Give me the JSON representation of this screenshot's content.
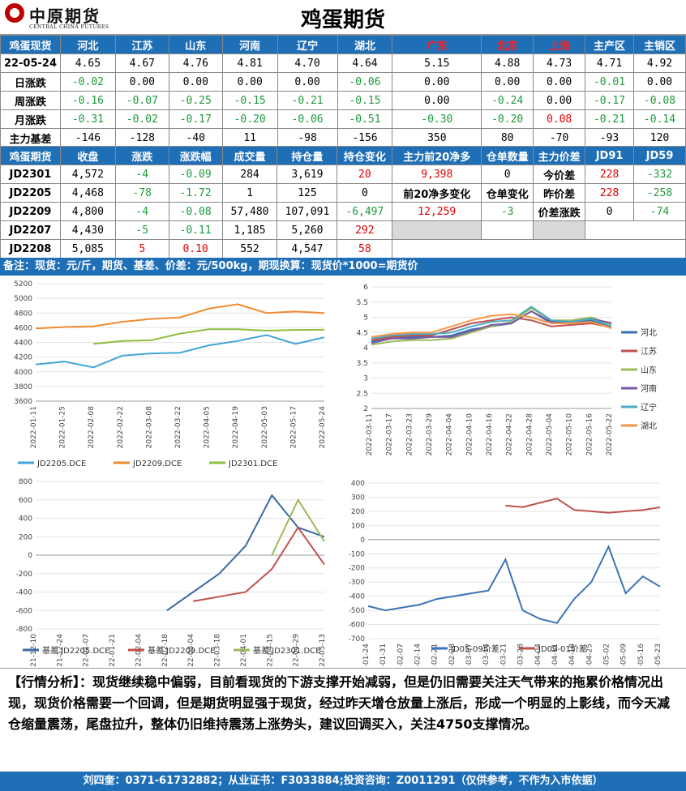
{
  "header": {
    "logo_cn": "中原期货",
    "logo_en": "CENTRAL CHINA FUTURES",
    "title": "鸡蛋期货"
  },
  "spot": {
    "columns": [
      "鸡蛋现货",
      "河北",
      "江苏",
      "山东",
      "河南",
      "辽宁",
      "湖北",
      "广东",
      "北京",
      "上海",
      "主产区",
      "主销区"
    ],
    "rows": [
      {
        "label": "22-05-24",
        "cells": [
          "4.65",
          "4.67",
          "4.76",
          "4.81",
          "4.70",
          "4.64",
          "5.15",
          "4.88",
          "4.73",
          "4.71",
          "4.92"
        ]
      },
      {
        "label": "日涨跌",
        "cells": [
          "-0.02",
          "0.00",
          "0.00",
          "0.00",
          "0.00",
          "-0.06",
          "0.00",
          "0.00",
          "0.00",
          "-0.01",
          "0.00"
        ]
      },
      {
        "label": "周涨跌",
        "cells": [
          "-0.16",
          "-0.07",
          "-0.25",
          "-0.15",
          "-0.21",
          "-0.15",
          "0.00",
          "-0.24",
          "0.00",
          "-0.17",
          "-0.08"
        ]
      },
      {
        "label": "月涨跌",
        "cells": [
          "-0.31",
          "-0.02",
          "-0.17",
          "-0.20",
          "-0.06",
          "-0.51",
          "-0.30",
          "-0.20",
          "0.08",
          "-0.21",
          "-0.14"
        ]
      },
      {
        "label": "主力基差",
        "cells": [
          "-146",
          "-128",
          "-40",
          "11",
          "-98",
          "-156",
          "350",
          "80",
          "-70",
          "-93",
          "120"
        ]
      }
    ]
  },
  "futures": {
    "columns": [
      "鸡蛋期货",
      "收盘",
      "涨跌",
      "涨跌幅",
      "成交量",
      "持仓量",
      "持仓变化",
      "主力前20净多",
      "仓单数量",
      "主力价差",
      "JD91",
      "JD59"
    ],
    "rows": [
      {
        "label": "JD2301",
        "cells": [
          "4,572",
          "-4",
          "-0.09",
          "284",
          "3,619",
          "20"
        ]
      },
      {
        "label": "JD2205",
        "cells": [
          "4,468",
          "-78",
          "-1.72",
          "1",
          "125",
          "0"
        ]
      },
      {
        "label": "JD2209",
        "cells": [
          "4,800",
          "-4",
          "-0.08",
          "57,480",
          "107,091",
          "-6,497"
        ]
      },
      {
        "label": "JD2207",
        "cells": [
          "4,430",
          "-5",
          "-0.11",
          "1,185",
          "5,260",
          "292"
        ]
      },
      {
        "label": "JD2208",
        "cells": [
          "5,085",
          "5",
          "0.10",
          "552",
          "4,547",
          "58"
        ]
      }
    ],
    "net_long_value": "9,398",
    "warrant_value": "0",
    "today_spread_label": "今价差",
    "today_spread": [
      "228",
      "-332"
    ],
    "net_long_change_label": "前20净多变化",
    "warrant_change_label": "仓单变化",
    "prev_spread_label": "昨价差",
    "prev_spread": [
      "228",
      "-258"
    ],
    "net_long_change": "12,259",
    "warrant_change": "-3",
    "spread_change_label": "价差涨跌",
    "spread_change": [
      "0",
      "-74"
    ]
  },
  "note": "备注：现货：元/斤，期货、基差、价差：元/500kg，期现换算：现货价*1000=期货价",
  "analysis": "【行情分析】：现货继续稳中偏弱，目前看现货的下游支撑开始减弱，但是仍旧需要关注天气带来的拖累价格情况出现，现货价格需要一个回调，但是期货明显强于现货，经过昨天增仓放量上涨后，形成一个明显的上影线，而今天减仓缩量震荡，尾盘拉升，整体仍旧维持震荡上涨势头，建议回调买入，关注4750支撑情况。",
  "footer": "刘四奎：0371-61732882；从业证书：F3033884;投资咨询：Z0011291（仅供参考，不作为入市依据）",
  "chart_data": [
    {
      "type": "line",
      "x": [
        "2022-01-11",
        "2022-01-25",
        "2022-02-08",
        "2022-02-22",
        "2022-03-08",
        "2022-03-22",
        "2022-04-05",
        "2022-04-19",
        "2022-05-03",
        "2022-05-17",
        "2022-05-24"
      ],
      "series": [
        {
          "name": "JD2205.DCE",
          "color": "#41a5d7",
          "values": [
            4100,
            4140,
            4060,
            4220,
            4250,
            4260,
            4360,
            4420,
            4500,
            4380,
            4468
          ]
        },
        {
          "name": "JD2209.DCE",
          "color": "#f08a30",
          "values": [
            4590,
            4610,
            4620,
            4680,
            4720,
            4740,
            4860,
            4920,
            4800,
            4820,
            4800
          ]
        },
        {
          "name": "JD2301.DCE",
          "color": "#8cbf3e",
          "values": [
            null,
            null,
            4380,
            4420,
            4430,
            4520,
            4580,
            4580,
            4560,
            4570,
            4572
          ]
        }
      ],
      "ylim": [
        3600,
        5200
      ],
      "yticks": [
        3600,
        3800,
        4000,
        4200,
        4400,
        4600,
        4800,
        5000,
        5200
      ],
      "legend": "bottom"
    },
    {
      "type": "line",
      "x": [
        "2022-03-11",
        "2022-03-17",
        "2022-03-23",
        "2022-03-29",
        "2022-04-04",
        "2022-04-10",
        "2022-04-16",
        "2022-04-22",
        "2022-04-28",
        "2022-05-04",
        "2022-05-10",
        "2022-05-16",
        "2022-05-22"
      ],
      "series": [
        {
          "name": "河北",
          "color": "#3b72b4",
          "values": [
            4.2,
            4.3,
            4.35,
            4.35,
            4.4,
            4.6,
            4.7,
            4.8,
            5.2,
            4.8,
            4.8,
            4.9,
            4.65
          ]
        },
        {
          "name": "江苏",
          "color": "#c0504d",
          "values": [
            4.25,
            4.35,
            4.4,
            4.4,
            4.6,
            4.8,
            4.9,
            5.0,
            4.9,
            4.7,
            4.75,
            4.8,
            4.67
          ]
        },
        {
          "name": "山东",
          "color": "#9bbb59",
          "values": [
            4.1,
            4.2,
            4.25,
            4.25,
            4.3,
            4.5,
            4.7,
            4.85,
            5.3,
            4.9,
            4.9,
            5.0,
            4.76
          ]
        },
        {
          "name": "河南",
          "color": "#7a5aa6",
          "values": [
            4.15,
            4.3,
            4.3,
            4.35,
            4.35,
            4.55,
            4.75,
            4.8,
            5.2,
            4.85,
            4.85,
            4.95,
            4.81
          ]
        },
        {
          "name": "辽宁",
          "color": "#4bacc6",
          "values": [
            4.3,
            4.4,
            4.45,
            4.45,
            4.5,
            4.7,
            4.85,
            4.9,
            5.35,
            4.9,
            4.85,
            4.95,
            4.7
          ]
        },
        {
          "name": "湖北",
          "color": "#f79646",
          "values": [
            4.35,
            4.45,
            4.5,
            4.5,
            4.7,
            4.9,
            5.05,
            5.1,
            5.0,
            4.8,
            4.8,
            4.85,
            4.64
          ]
        }
      ],
      "ylim": [
        2.0,
        6.0
      ],
      "yticks": [
        2.0,
        2.5,
        3.0,
        3.5,
        4.0,
        4.5,
        5.0,
        5.5,
        6.0
      ],
      "legend": "right"
    },
    {
      "type": "line",
      "x": [
        "2021-12-10",
        "2021-12-24",
        "2022-01-07",
        "2022-01-21",
        "2022-02-04",
        "2022-02-18",
        "2022-03-04",
        "2022-03-18",
        "2022-04-01",
        "2022-04-15",
        "2022-04-29",
        "2022-05-13"
      ],
      "series": [
        {
          "name": "基差 JD2205.DCE",
          "color": "#3b6aa3",
          "values": [
            null,
            null,
            null,
            null,
            null,
            -600,
            -400,
            -200,
            100,
            650,
            300,
            200
          ]
        },
        {
          "name": "基差 JD2209.DCE",
          "color": "#c0504d",
          "values": [
            null,
            null,
            null,
            null,
            null,
            null,
            -500,
            -450,
            -400,
            -150,
            300,
            -100
          ]
        },
        {
          "name": "基差 JD2301.DCE",
          "color": "#9bbb59",
          "values": [
            null,
            null,
            null,
            null,
            null,
            null,
            null,
            null,
            null,
            0,
            600,
            150
          ]
        }
      ],
      "ylim": [
        -800,
        800
      ],
      "yticks": [
        -800,
        -600,
        -400,
        -200,
        0,
        200,
        400,
        600,
        800
      ],
      "legend": "bottom"
    },
    {
      "type": "line",
      "x": [
        "2022-01-24",
        "2022-01-31",
        "2022-02-07",
        "2022-02-14",
        "2022-02-21",
        "2022-02-28",
        "2022-03-07",
        "2022-03-14",
        "2022-03-21",
        "2022-03-28",
        "2022-04-04",
        "2022-04-11",
        "2022-04-18",
        "2022-04-25",
        "2022-05-02",
        "2022-05-09",
        "2022-05-16",
        "2022-05-23"
      ],
      "series": [
        {
          "name": "JD05-09价差",
          "color": "#3b72b4",
          "values": [
            -470,
            -500,
            -480,
            -460,
            -420,
            -400,
            -380,
            -360,
            -140,
            -500,
            -560,
            -590,
            -420,
            -300,
            -50,
            -380,
            -260,
            -332
          ]
        },
        {
          "name": "JD09-01价差",
          "color": "#c0504d",
          "values": [
            null,
            null,
            null,
            null,
            null,
            null,
            null,
            null,
            240,
            230,
            260,
            290,
            210,
            200,
            190,
            200,
            210,
            228
          ]
        }
      ],
      "ylim": [
        -700,
        400
      ],
      "yticks": [
        -700,
        -600,
        -500,
        -400,
        -300,
        -200,
        -100,
        0,
        100,
        200,
        300,
        400
      ],
      "legend": "bottom"
    }
  ]
}
